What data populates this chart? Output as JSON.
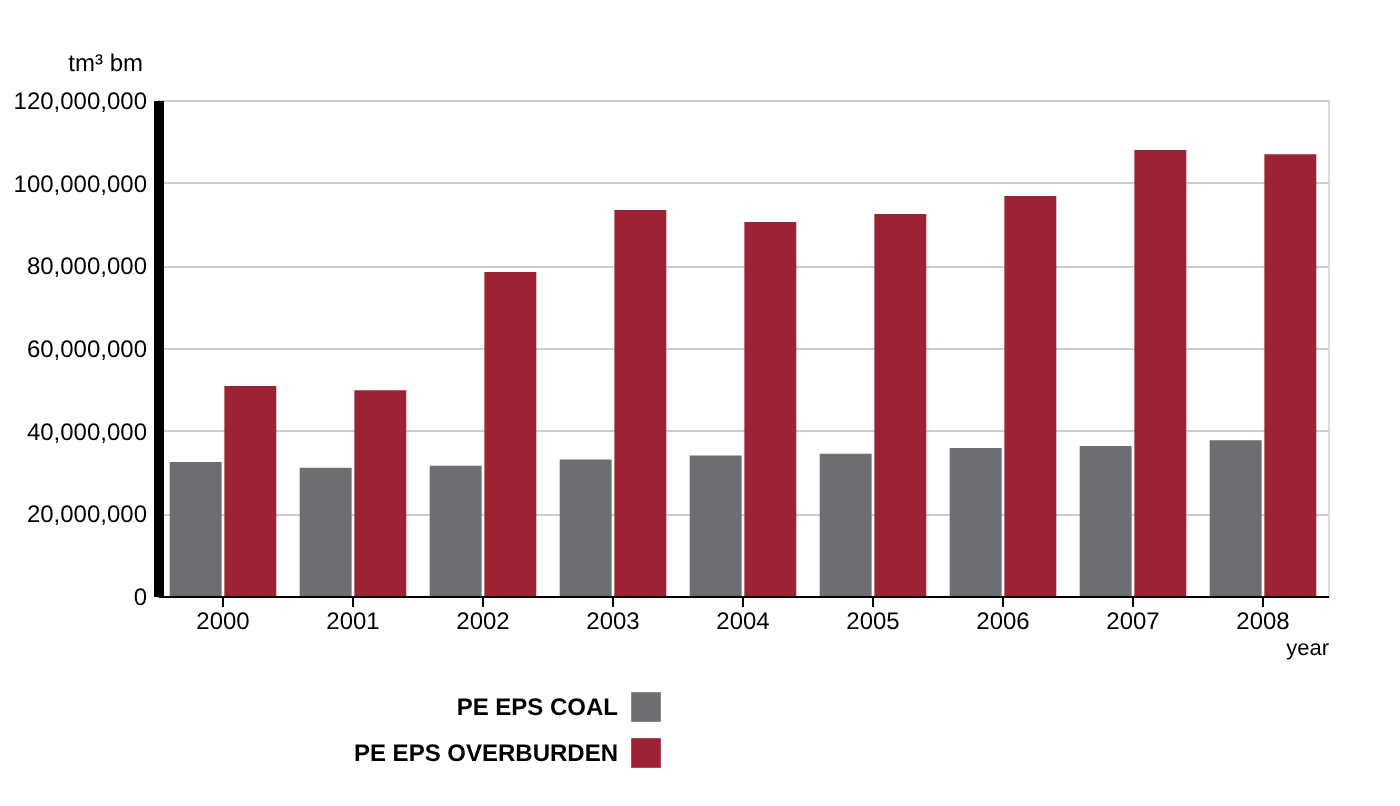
{
  "chart_data": {
    "type": "bar",
    "ylabel": "tm³ bm",
    "xlabel": "year",
    "categories": [
      "2000",
      "2001",
      "2002",
      "2003",
      "2004",
      "2005",
      "2006",
      "2007",
      "2008"
    ],
    "series": [
      {
        "name": "PE EPS COAL",
        "color": "#6d6e71",
        "values": [
          32400000,
          31000000,
          31500000,
          33000000,
          34000000,
          34400000,
          35800000,
          36300000,
          37700000
        ]
      },
      {
        "name": "PE EPS OVERBURDEN",
        "color": "#9e2236",
        "values": [
          50800000,
          49800000,
          78400000,
          93400000,
          90500000,
          92400000,
          96800000,
          107900000,
          106900000
        ]
      }
    ],
    "ylim": [
      0,
      120000000
    ],
    "yticks": [
      0,
      {
        "value": 20000000,
        "label": "20,000,000"
      },
      {
        "value": 40000000,
        "label": "40,000,000"
      },
      {
        "value": 60000000,
        "label": "60,000,000"
      },
      {
        "value": 80000000,
        "label": "80,000,000"
      },
      {
        "value": 100000000,
        "label": "100,000,000"
      },
      {
        "value": 120000000,
        "label": "120,000,000"
      }
    ],
    "grid": "y",
    "legend": "bottom left"
  }
}
